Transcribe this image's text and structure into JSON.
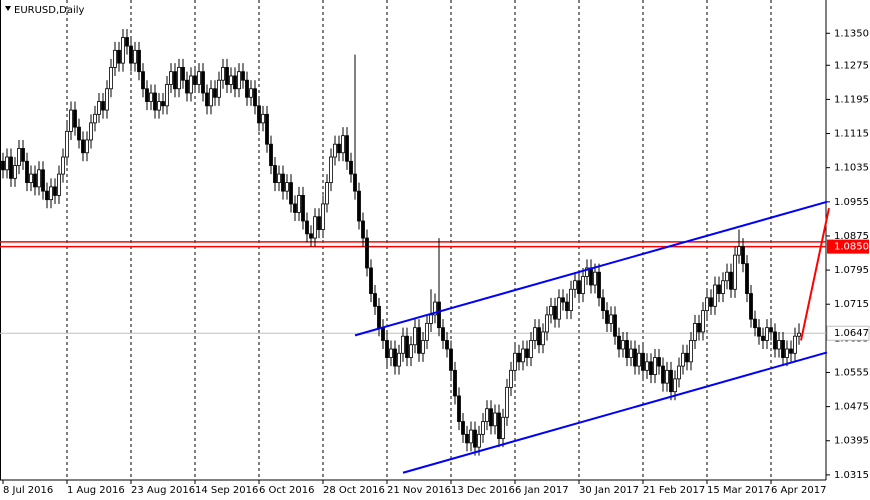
{
  "chart_data": {
    "type": "candlestick",
    "title": "EURUSD,Daily",
    "categories": [
      "8 Jul 2016",
      null,
      null,
      null,
      null,
      null,
      null,
      null,
      null,
      null,
      null,
      null,
      null,
      null,
      null,
      null,
      "1 Aug 2016",
      null,
      null,
      null,
      null,
      null,
      null,
      null,
      null,
      null,
      null,
      null,
      null,
      null,
      null,
      null,
      "23 Aug 2016",
      null,
      null,
      null,
      null,
      null,
      null,
      null,
      null,
      null,
      null,
      null,
      null,
      null,
      null,
      null,
      "14 Sep 2016",
      null,
      null,
      null,
      null,
      null,
      null,
      null,
      null,
      null,
      null,
      null,
      null,
      null,
      null,
      null,
      "6 Oct 2016",
      null,
      null,
      null,
      null,
      null,
      null,
      null,
      null,
      null,
      null,
      null,
      null,
      null,
      null,
      null,
      "28 Oct 2016",
      null,
      null,
      null,
      null,
      null,
      null,
      null,
      null,
      null,
      null,
      null,
      null,
      null,
      null,
      null,
      "21 Nov 2016",
      null,
      null,
      null,
      null,
      null,
      null,
      null,
      null,
      null,
      null,
      null,
      null,
      null,
      null,
      null,
      "13 Dec 2016",
      null,
      null,
      null,
      null,
      null,
      null,
      null,
      null,
      null,
      null,
      null,
      null,
      null,
      null,
      null,
      "6 Jan 2017",
      null,
      null,
      null,
      null,
      null,
      null,
      null,
      null,
      null,
      null,
      null,
      null,
      null,
      null,
      null,
      "30 Jan 2017",
      null,
      null,
      null,
      null,
      null,
      null,
      null,
      null,
      null,
      null,
      null,
      null,
      null,
      null,
      null,
      "21 Feb 2017",
      null,
      null,
      null,
      null,
      null,
      null,
      null,
      null,
      null,
      null,
      null,
      null,
      null,
      null,
      null,
      "15 Mar 2017",
      null,
      null,
      null,
      null,
      null,
      null,
      null,
      null,
      null,
      null,
      null,
      null,
      null,
      null,
      null,
      "6 Apr 2017",
      null,
      null,
      null,
      null,
      null,
      null,
      null
    ],
    "open": [
      1.105,
      1.103,
      1.106,
      1.101,
      1.104,
      1.108,
      1.105,
      1.1,
      1.102,
      1.099,
      1.103,
      1.098,
      1.096,
      1.099,
      1.097,
      1.102,
      1.106,
      1.112,
      1.117,
      1.113,
      1.11,
      1.107,
      1.11,
      1.114,
      1.116,
      1.119,
      1.117,
      1.122,
      1.127,
      1.131,
      1.128,
      1.134,
      1.132,
      1.128,
      1.131,
      1.126,
      1.122,
      1.119,
      1.121,
      1.117,
      1.119,
      1.118,
      1.123,
      1.126,
      1.122,
      1.127,
      1.124,
      1.121,
      1.125,
      1.123,
      1.126,
      1.121,
      1.118,
      1.122,
      1.12,
      1.124,
      1.127,
      1.123,
      1.125,
      1.122,
      1.126,
      1.124,
      1.12,
      1.122,
      1.118,
      1.114,
      1.116,
      1.109,
      1.104,
      1.1,
      1.102,
      1.098,
      1.1,
      1.095,
      1.093,
      1.097,
      1.091,
      1.088,
      1.087,
      1.092,
      1.089,
      1.095,
      1.1,
      1.106,
      1.109,
      1.107,
      1.111,
      1.105,
      1.102,
      1.098,
      1.091,
      1.087,
      1.08,
      1.074,
      1.071,
      1.066,
      1.063,
      1.059,
      1.061,
      1.057,
      1.06,
      1.064,
      1.059,
      1.062,
      1.066,
      1.06,
      1.063,
      1.067,
      1.069,
      1.072,
      1.066,
      1.063,
      1.061,
      1.056,
      1.05,
      1.044,
      1.041,
      1.039,
      1.042,
      1.038,
      1.041,
      1.044,
      1.047,
      1.043,
      1.046,
      1.04,
      1.045,
      1.052,
      1.056,
      1.06,
      1.058,
      1.061,
      1.059,
      1.063,
      1.066,
      1.062,
      1.065,
      1.069,
      1.071,
      1.068,
      1.073,
      1.072,
      1.07,
      1.075,
      1.077,
      1.074,
      1.078,
      1.08,
      1.076,
      1.079,
      1.073,
      1.07,
      1.067,
      1.069,
      1.064,
      1.061,
      1.063,
      1.059,
      1.061,
      1.057,
      1.06,
      1.056,
      1.058,
      1.055,
      1.059,
      1.057,
      1.053,
      1.056,
      1.051,
      1.054,
      1.057,
      1.06,
      1.058,
      1.063,
      1.067,
      1.065,
      1.07,
      1.073,
      1.071,
      1.076,
      1.074,
      1.077,
      1.079,
      1.075,
      1.083,
      1.085,
      1.081,
      1.074,
      1.068,
      1.066,
      1.064,
      1.063,
      1.066,
      1.065,
      1.061,
      1.063,
      1.059,
      1.061,
      1.06,
      1.064
    ],
    "high": [
      1.107,
      1.108,
      1.108,
      1.106,
      1.11,
      1.11,
      1.107,
      1.104,
      1.104,
      1.105,
      1.105,
      1.1,
      1.101,
      1.101,
      1.104,
      1.108,
      1.114,
      1.119,
      1.119,
      1.115,
      1.112,
      1.112,
      1.116,
      1.118,
      1.121,
      1.121,
      1.124,
      1.129,
      1.133,
      1.133,
      1.136,
      1.136,
      1.134,
      1.133,
      1.133,
      1.128,
      1.124,
      1.123,
      1.123,
      1.121,
      1.121,
      1.125,
      1.128,
      1.128,
      1.129,
      1.129,
      1.126,
      1.127,
      1.127,
      1.128,
      1.128,
      1.123,
      1.124,
      1.124,
      1.126,
      1.129,
      1.129,
      1.127,
      1.127,
      1.128,
      1.128,
      1.126,
      1.124,
      1.124,
      1.12,
      1.118,
      1.118,
      1.111,
      1.106,
      1.104,
      1.104,
      1.102,
      1.102,
      1.097,
      1.099,
      1.099,
      1.093,
      1.09,
      1.094,
      1.094,
      1.097,
      1.102,
      1.108,
      1.111,
      1.111,
      1.113,
      1.113,
      1.107,
      1.13,
      1.1,
      1.093,
      1.089,
      1.082,
      1.076,
      1.073,
      1.068,
      1.065,
      1.063,
      1.063,
      1.062,
      1.066,
      1.066,
      1.064,
      1.068,
      1.068,
      1.065,
      1.069,
      1.075,
      1.074,
      1.087,
      1.068,
      1.065,
      1.063,
      1.058,
      1.052,
      1.046,
      1.043,
      1.044,
      1.044,
      1.043,
      1.046,
      1.049,
      1.049,
      1.048,
      1.048,
      1.047,
      1.054,
      1.058,
      1.062,
      1.062,
      1.063,
      1.063,
      1.065,
      1.068,
      1.068,
      1.067,
      1.071,
      1.073,
      1.073,
      1.075,
      1.075,
      1.074,
      1.077,
      1.079,
      1.079,
      1.08,
      1.082,
      1.082,
      1.081,
      1.081,
      1.075,
      1.072,
      1.071,
      1.071,
      1.066,
      1.065,
      1.065,
      1.063,
      1.063,
      1.062,
      1.062,
      1.06,
      1.06,
      1.061,
      1.061,
      1.059,
      1.058,
      1.058,
      1.056,
      1.059,
      1.062,
      1.062,
      1.065,
      1.069,
      1.069,
      1.072,
      1.075,
      1.075,
      1.078,
      1.078,
      1.079,
      1.081,
      1.081,
      1.085,
      1.089,
      1.087,
      1.083,
      1.076,
      1.07,
      1.068,
      1.066,
      1.068,
      1.068,
      1.067,
      1.065,
      1.065,
      1.063,
      1.063,
      1.066,
      1.067
    ],
    "low": [
      1.101,
      1.101,
      1.099,
      1.099,
      1.102,
      1.103,
      1.098,
      1.098,
      1.097,
      1.097,
      1.096,
      1.094,
      1.094,
      1.095,
      1.095,
      1.1,
      1.104,
      1.11,
      1.111,
      1.108,
      1.105,
      1.105,
      1.108,
      1.112,
      1.114,
      1.115,
      1.115,
      1.12,
      1.125,
      1.126,
      1.126,
      1.13,
      1.126,
      1.126,
      1.124,
      1.12,
      1.117,
      1.117,
      1.115,
      1.115,
      1.116,
      1.116,
      1.121,
      1.12,
      1.12,
      1.122,
      1.119,
      1.119,
      1.121,
      1.121,
      1.119,
      1.116,
      1.116,
      1.118,
      1.118,
      1.122,
      1.121,
      1.121,
      1.12,
      1.12,
      1.122,
      1.118,
      1.118,
      1.116,
      1.112,
      1.112,
      1.107,
      1.102,
      1.098,
      1.098,
      1.096,
      1.096,
      1.093,
      1.091,
      1.091,
      1.089,
      1.086,
      1.085,
      1.085,
      1.087,
      1.087,
      1.093,
      1.098,
      1.104,
      1.105,
      1.105,
      1.103,
      1.1,
      1.096,
      1.089,
      1.085,
      1.078,
      1.072,
      1.069,
      1.064,
      1.061,
      1.057,
      1.057,
      1.055,
      1.055,
      1.058,
      1.057,
      1.057,
      1.06,
      1.058,
      1.058,
      1.061,
      1.065,
      1.067,
      1.064,
      1.061,
      1.059,
      1.054,
      1.048,
      1.042,
      1.039,
      1.037,
      1.037,
      1.036,
      1.036,
      1.039,
      1.042,
      1.041,
      1.041,
      1.038,
      1.038,
      1.043,
      1.05,
      1.054,
      1.056,
      1.056,
      1.057,
      1.057,
      1.061,
      1.06,
      1.06,
      1.063,
      1.067,
      1.066,
      1.066,
      1.07,
      1.068,
      1.068,
      1.073,
      1.072,
      1.072,
      1.076,
      1.074,
      1.074,
      1.071,
      1.068,
      1.065,
      1.065,
      1.062,
      1.059,
      1.059,
      1.057,
      1.057,
      1.055,
      1.055,
      1.054,
      1.054,
      1.053,
      1.053,
      1.055,
      1.051,
      1.051,
      1.049,
      1.049,
      1.052,
      1.055,
      1.056,
      1.056,
      1.061,
      1.063,
      1.063,
      1.068,
      1.069,
      1.069,
      1.072,
      1.072,
      1.075,
      1.073,
      1.073,
      1.081,
      1.079,
      1.072,
      1.066,
      1.064,
      1.062,
      1.061,
      1.061,
      1.063,
      1.059,
      1.059,
      1.057,
      1.057,
      1.058,
      1.058,
      1.062
    ],
    "close": [
      1.103,
      1.106,
      1.101,
      1.104,
      1.108,
      1.105,
      1.1,
      1.102,
      1.099,
      1.103,
      1.098,
      1.096,
      1.099,
      1.097,
      1.102,
      1.106,
      1.112,
      1.117,
      1.113,
      1.11,
      1.107,
      1.11,
      1.114,
      1.116,
      1.119,
      1.117,
      1.122,
      1.127,
      1.131,
      1.128,
      1.134,
      1.132,
      1.128,
      1.131,
      1.126,
      1.122,
      1.119,
      1.121,
      1.117,
      1.119,
      1.118,
      1.123,
      1.126,
      1.122,
      1.127,
      1.124,
      1.121,
      1.125,
      1.123,
      1.126,
      1.121,
      1.118,
      1.122,
      1.12,
      1.124,
      1.127,
      1.123,
      1.125,
      1.122,
      1.126,
      1.124,
      1.12,
      1.122,
      1.118,
      1.114,
      1.116,
      1.109,
      1.104,
      1.1,
      1.102,
      1.098,
      1.1,
      1.095,
      1.093,
      1.097,
      1.091,
      1.088,
      1.087,
      1.092,
      1.089,
      1.095,
      1.1,
      1.106,
      1.109,
      1.107,
      1.111,
      1.105,
      1.102,
      1.098,
      1.091,
      1.087,
      1.08,
      1.074,
      1.071,
      1.066,
      1.063,
      1.059,
      1.061,
      1.057,
      1.06,
      1.064,
      1.059,
      1.062,
      1.066,
      1.06,
      1.063,
      1.067,
      1.069,
      1.072,
      1.066,
      1.063,
      1.061,
      1.056,
      1.05,
      1.044,
      1.041,
      1.039,
      1.042,
      1.038,
      1.041,
      1.044,
      1.047,
      1.043,
      1.046,
      1.04,
      1.045,
      1.052,
      1.056,
      1.06,
      1.058,
      1.061,
      1.059,
      1.063,
      1.066,
      1.062,
      1.065,
      1.069,
      1.071,
      1.068,
      1.073,
      1.072,
      1.07,
      1.075,
      1.077,
      1.074,
      1.078,
      1.08,
      1.076,
      1.079,
      1.073,
      1.07,
      1.067,
      1.069,
      1.064,
      1.061,
      1.063,
      1.059,
      1.061,
      1.057,
      1.06,
      1.056,
      1.058,
      1.055,
      1.059,
      1.057,
      1.053,
      1.056,
      1.051,
      1.054,
      1.057,
      1.06,
      1.058,
      1.063,
      1.067,
      1.065,
      1.07,
      1.073,
      1.071,
      1.076,
      1.074,
      1.077,
      1.079,
      1.075,
      1.083,
      1.085,
      1.081,
      1.074,
      1.068,
      1.066,
      1.064,
      1.063,
      1.066,
      1.065,
      1.061,
      1.063,
      1.059,
      1.061,
      1.06,
      1.064,
      1.0647
    ],
    "up_color": "#ffffff",
    "down_color": "#000000",
    "wick_color": "#000000",
    "ylim": [
      1.0303,
      1.1428
    ],
    "yticks": [
      {
        "value": 1.135,
        "label": "1.1350"
      },
      {
        "value": 1.1275,
        "label": "1.1275"
      },
      {
        "value": 1.1195,
        "label": "1.1195"
      },
      {
        "value": 1.1115,
        "label": "1.1115"
      },
      {
        "value": 1.1035,
        "label": "1.1035"
      },
      {
        "value": 1.0955,
        "label": "1.0955"
      },
      {
        "value": 1.0875,
        "label": "1.0875"
      },
      {
        "value": 1.0795,
        "label": "1.0795"
      },
      {
        "value": 1.0715,
        "label": "1.0715"
      },
      {
        "value": 1.0635,
        "label": "1.0635"
      },
      {
        "value": 1.0555,
        "label": "1.0555"
      },
      {
        "value": 1.0475,
        "label": "1.0475"
      },
      {
        "value": 1.0395,
        "label": "1.0395"
      },
      {
        "value": 1.0315,
        "label": "1.0315"
      }
    ],
    "grid": true,
    "levels": [
      {
        "value": 1.0861,
        "color": "#ff0000"
      },
      {
        "value": 1.085,
        "label": "1.0850",
        "color": "#ff0000"
      }
    ],
    "trendlines": [
      {
        "points": [
          [
            88,
            1.0642
          ],
          [
            206,
            1.0955
          ]
        ],
        "color": "#0000ff"
      },
      {
        "points": [
          [
            100,
            1.032
          ],
          [
            206,
            1.0602
          ]
        ],
        "color": "#0000ff"
      },
      {
        "points": [
          [
            199.5,
            1.063
          ],
          [
            206.5,
            1.094
          ]
        ],
        "color": "#ff0000"
      }
    ]
  }
}
